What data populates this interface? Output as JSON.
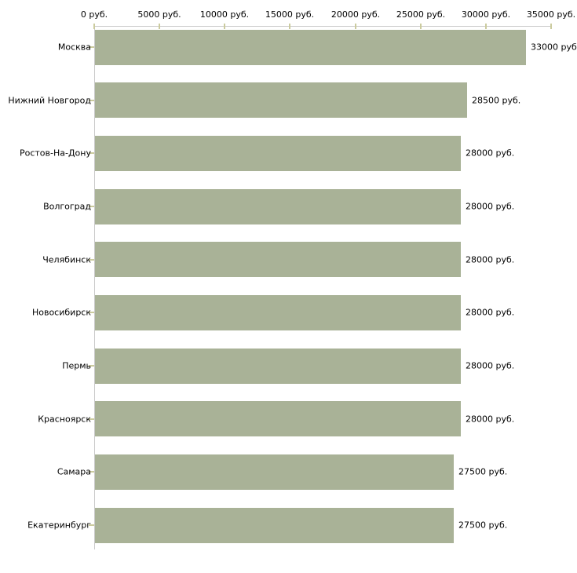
{
  "chart_data": {
    "type": "bar",
    "orientation": "horizontal",
    "title": "",
    "xlabel": "",
    "ylabel": "",
    "categories": [
      "Москва",
      "Нижний Новгород",
      "Ростов-На-Дону",
      "Волгоград",
      "Челябинск",
      "Новосибирск",
      "Пермь",
      "Красноярск",
      "Самара",
      "Екатеринбург"
    ],
    "values": [
      33000,
      28500,
      28000,
      28000,
      28000,
      28000,
      28000,
      28000,
      27500,
      27500
    ],
    "value_labels": [
      "33000 руб",
      "28500 руб.",
      "28000 руб.",
      "28000 руб.",
      "28000 руб.",
      "28000 руб.",
      "28000 руб.",
      "28000 руб.",
      "27500 руб.",
      "27500 руб."
    ],
    "x_ticks": [
      0,
      5000,
      10000,
      15000,
      20000,
      25000,
      30000,
      35000
    ],
    "x_tick_labels": [
      "0 руб.",
      "5000 руб.",
      "10000 руб.",
      "15000 руб.",
      "20000 руб.",
      "25000 руб.",
      "30000 руб.",
      "35000 руб."
    ],
    "xlim": [
      0,
      35000
    ],
    "grid": false,
    "legend": false,
    "axis_position": "top-left",
    "colors": {
      "bar": "#a9b297",
      "axis_line": "#c9c9c9",
      "tick_mark": "#cbcb9e",
      "text": "#000000",
      "background": "#ffffff"
    }
  }
}
